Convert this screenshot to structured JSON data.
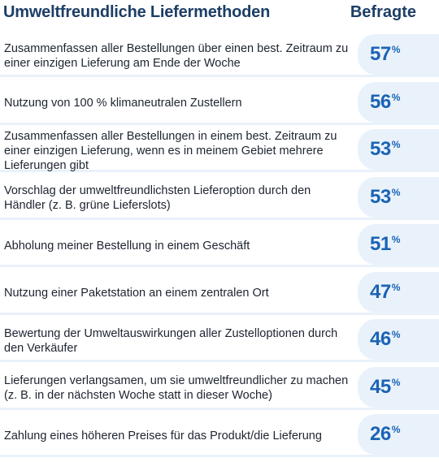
{
  "header": {
    "title": "Umweltfreundliche Liefermethoden",
    "column": "Befragte"
  },
  "chart_data": {
    "type": "table",
    "title": "Umweltfreundliche Liefermethoden",
    "value_header": "Befragte",
    "unit": "%",
    "rows": [
      {
        "label": "Zusammenfassen aller Bestellungen über einen best. Zeitraum zu einer einzigen Lieferung am Ende der Woche",
        "value": 57
      },
      {
        "label": "Nutzung von 100 % klimaneutralen Zustellern",
        "value": 56
      },
      {
        "label": "Zusammenfassen aller Bestellungen in einem best. Zeitraum zu einer einzigen Lieferung, wenn es in meinem Gebiet mehrere Lieferungen gibt",
        "value": 53
      },
      {
        "label": "Vorschlag der umweltfreundlichsten Lieferoption durch den Händler (z. B. grüne Lieferslots)",
        "value": 53
      },
      {
        "label": "Abholung meiner Bestellung in einem Geschäft",
        "value": 51
      },
      {
        "label": "Nutzung einer Paketstation an einem zentralen Ort",
        "value": 47
      },
      {
        "label": "Bewertung der Umweltauswirkungen aller Zustelloptionen durch den Verkäufer",
        "value": 46
      },
      {
        "label": "Lieferungen verlangsamen, um sie umweltfreundlicher zu machen (z. B. in der nächsten Woche statt in dieser Woche)",
        "value": 45
      },
      {
        "label": "Zahlung eines höheren Preises für das Produkt/die Lieferung",
        "value": 26
      }
    ],
    "colors": {
      "accent": "#1b63b5",
      "band": "#e9f2fa",
      "title": "#1d3e66"
    }
  }
}
